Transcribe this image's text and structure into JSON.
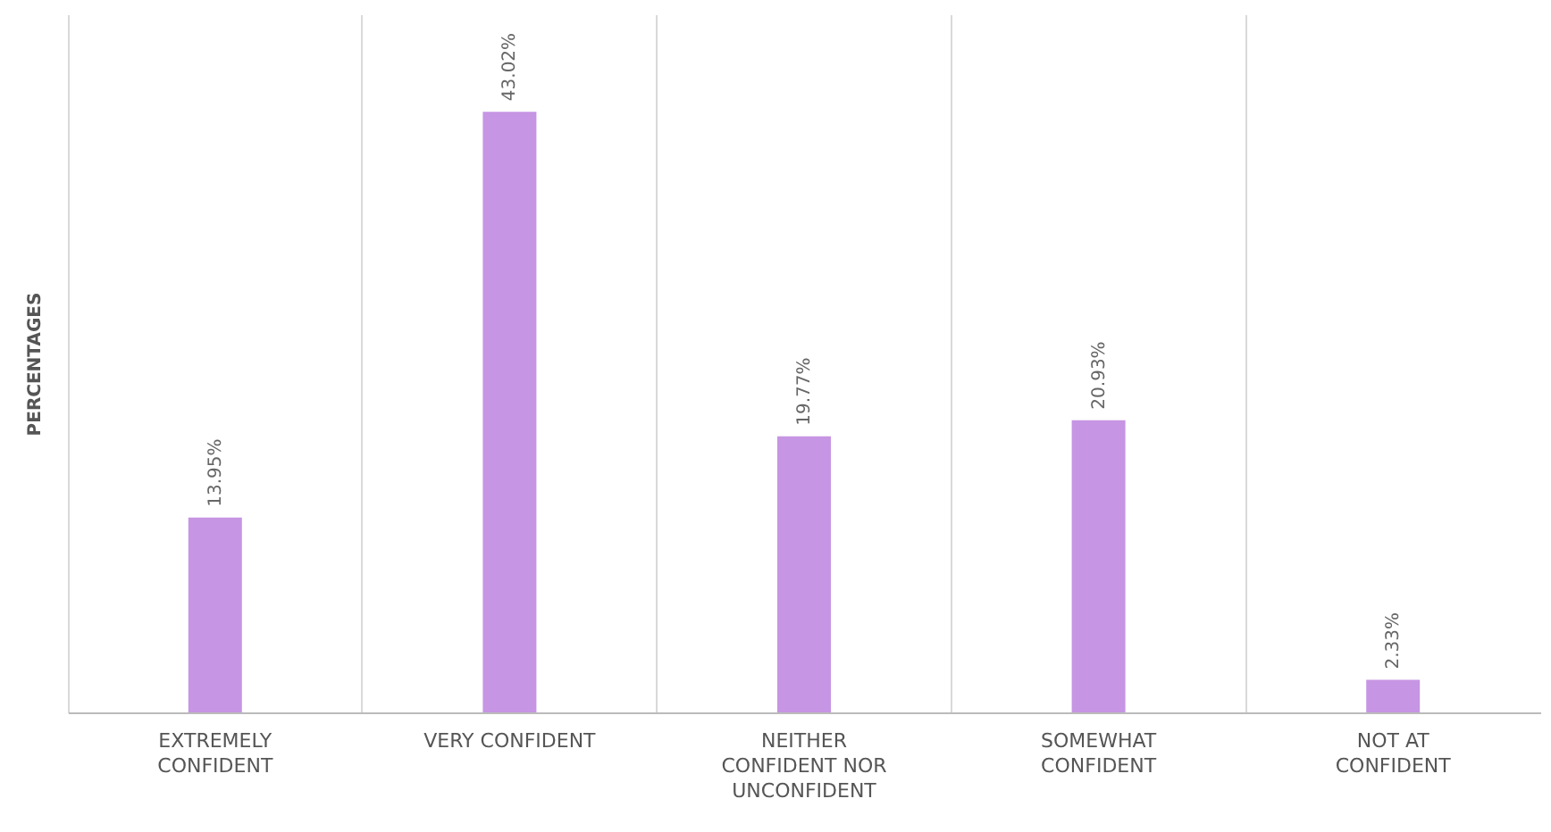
{
  "chart_data": {
    "type": "bar",
    "ylabel": "PERCENTAGES",
    "categories": [
      "EXTREMELY CONFIDENT",
      "VERY CONFIDENT",
      "NEITHER CONFIDENT NOR UNCONFIDENT",
      "SOMEWHAT CONFIDENT",
      "NOT AT CONFIDENT"
    ],
    "values": [
      13.95,
      43.02,
      19.77,
      20.93,
      2.33
    ],
    "value_labels": [
      "13.95%",
      "43.02%",
      "19.77%",
      "20.93%",
      "2.33%"
    ],
    "color": "#c695e3",
    "tick_labels": "x",
    "grid": "x"
  }
}
